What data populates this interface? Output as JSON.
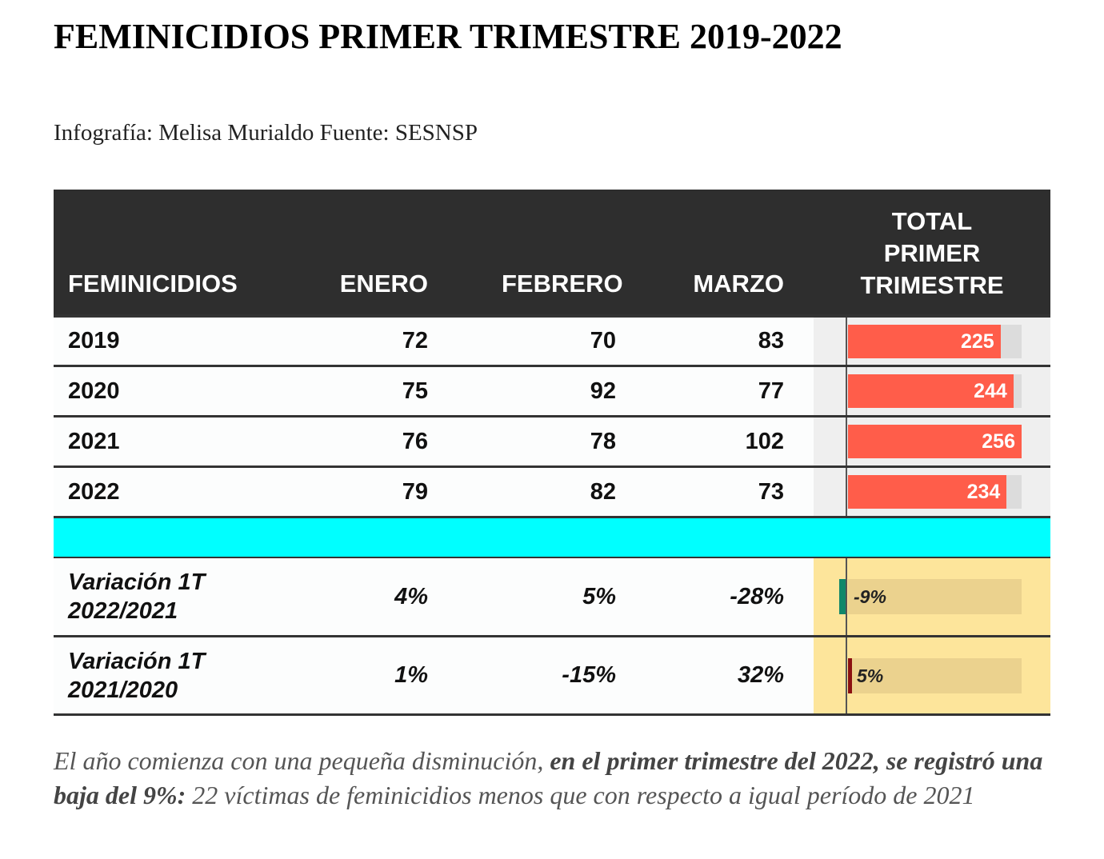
{
  "title": "FEMINICIDIOS PRIMER TRIMESTRE 2019-2022",
  "subtitle": "Infografía: Melisa Murialdo Fuente: SESNSP",
  "headers": {
    "label": "FEMINICIDIOS",
    "jan": "ENERO",
    "feb": "FEBRERO",
    "mar": "MARZO",
    "total_lines": [
      "TOTAL",
      "PRIMER",
      "TRIMESTRE"
    ]
  },
  "rows": [
    {
      "year": "2019",
      "jan": "72",
      "feb": "70",
      "mar": "83",
      "total": "225"
    },
    {
      "year": "2020",
      "jan": "75",
      "feb": "92",
      "mar": "77",
      "total": "244"
    },
    {
      "year": "2021",
      "jan": "76",
      "feb": "78",
      "mar": "102",
      "total": "256"
    },
    {
      "year": "2022",
      "jan": "79",
      "feb": "82",
      "mar": "73",
      "total": "234"
    }
  ],
  "variations": [
    {
      "label_lines": [
        "Variación 1T",
        "2022/2021"
      ],
      "jan": "4%",
      "feb": "5%",
      "mar": "-28%",
      "total": "-9%"
    },
    {
      "label_lines": [
        "Variación 1T",
        "2021/2020"
      ],
      "jan": "1%",
      "feb": "-15%",
      "mar": "32%",
      "total": "5%"
    }
  ],
  "note": {
    "part1": "El año comienza con una pequeña disminución, ",
    "bold": "en el primer trimestre del 2022, se registró una baja del 9%:",
    "part2": " 22 víctimas de feminicidios menos que con respecto a igual período de 2021"
  },
  "chart_data": {
    "type": "table",
    "columns": [
      "FEMINICIDIOS",
      "ENERO",
      "FEBRERO",
      "MARZO",
      "TOTAL PRIMER TRIMESTRE"
    ],
    "rows": [
      [
        "2019",
        72,
        70,
        83,
        225
      ],
      [
        "2020",
        75,
        92,
        77,
        244
      ],
      [
        "2021",
        76,
        78,
        102,
        256
      ],
      [
        "2022",
        79,
        82,
        73,
        234
      ]
    ],
    "totals": [
      225,
      244,
      256,
      234
    ],
    "total_max": 256,
    "variations": [
      {
        "period": "2022/2021",
        "values_pct": [
          4,
          5,
          -28
        ],
        "total_pct": -9
      },
      {
        "period": "2021/2020",
        "values_pct": [
          1,
          -15,
          32
        ],
        "total_pct": 5
      }
    ],
    "colors": {
      "header": "#2e2e2e",
      "bar": "#ff5d4a",
      "separator": "#00ffff",
      "variation_bg": "#fde59b",
      "negative_var": "#11876a",
      "positive_var": "#8b1010"
    }
  }
}
